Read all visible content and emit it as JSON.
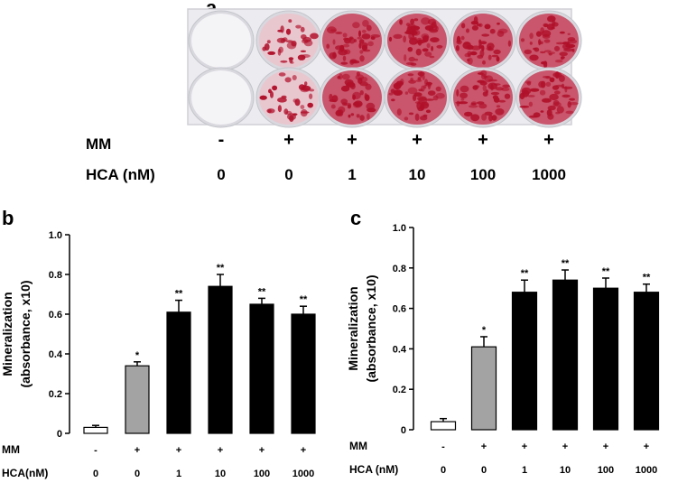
{
  "panels": {
    "a": "a",
    "b": "b",
    "c": "c"
  },
  "plate": {
    "mm_label": "MM",
    "hca_label": "HCA (nM)",
    "mm_values": [
      "-",
      "+",
      "+",
      "+",
      "+",
      "+"
    ],
    "hca_values": [
      "0",
      "0",
      "1",
      "10",
      "100",
      "1000"
    ],
    "well_stain": [
      0,
      0.55,
      0.75,
      0.85,
      0.8,
      0.78
    ],
    "stain_color": "#b0102a",
    "plate_color": "#e9e9ee"
  },
  "chart_data": [
    {
      "type": "bar",
      "panel": "b",
      "categories": [
        "0",
        "0",
        "1",
        "10",
        "100",
        "1000"
      ],
      "values": [
        0.03,
        0.34,
        0.61,
        0.74,
        0.65,
        0.6
      ],
      "errors": [
        0.01,
        0.02,
        0.06,
        0.06,
        0.03,
        0.04
      ],
      "significance": [
        "",
        "*",
        "**",
        "**",
        "**",
        "**"
      ],
      "bar_colors": [
        "#ffffff",
        "#a3a3a3",
        "#000000",
        "#000000",
        "#000000",
        "#000000"
      ],
      "ylabel_line1": "Mineralization",
      "ylabel_line2": "(absorbance, x10)",
      "ylim": [
        0,
        1.0
      ],
      "yticks": [
        "0",
        "0.2",
        "0.4",
        "0.6",
        "0.8",
        "1.0"
      ],
      "xrow1": {
        "label": "MM",
        "values": [
          "-",
          "+",
          "+",
          "+",
          "+",
          "+"
        ]
      },
      "xrow2": {
        "label": "HCA(nM)",
        "values": [
          "0",
          "0",
          "1",
          "10",
          "100",
          "1000"
        ]
      }
    },
    {
      "type": "bar",
      "panel": "c",
      "categories": [
        "0",
        "0",
        "1",
        "10",
        "100",
        "1000"
      ],
      "values": [
        0.04,
        0.41,
        0.68,
        0.74,
        0.7,
        0.68
      ],
      "errors": [
        0.015,
        0.05,
        0.06,
        0.05,
        0.05,
        0.04
      ],
      "significance": [
        "",
        "*",
        "**",
        "**",
        "**",
        "**"
      ],
      "bar_colors": [
        "#ffffff",
        "#a3a3a3",
        "#000000",
        "#000000",
        "#000000",
        "#000000"
      ],
      "ylabel_line1": "Mineralization",
      "ylabel_line2": "(absorbance, x10)",
      "ylim": [
        0,
        1.0
      ],
      "yticks": [
        "0",
        "0.2",
        "0.4",
        "0.6",
        "0.8",
        "1.0"
      ],
      "xrow1": {
        "label": "MM",
        "values": [
          "-",
          "+",
          "+",
          "+",
          "+",
          "+"
        ]
      },
      "xrow2": {
        "label": "HCA (nM)",
        "values": [
          "0",
          "0",
          "1",
          "10",
          "100",
          "1000"
        ]
      }
    }
  ]
}
